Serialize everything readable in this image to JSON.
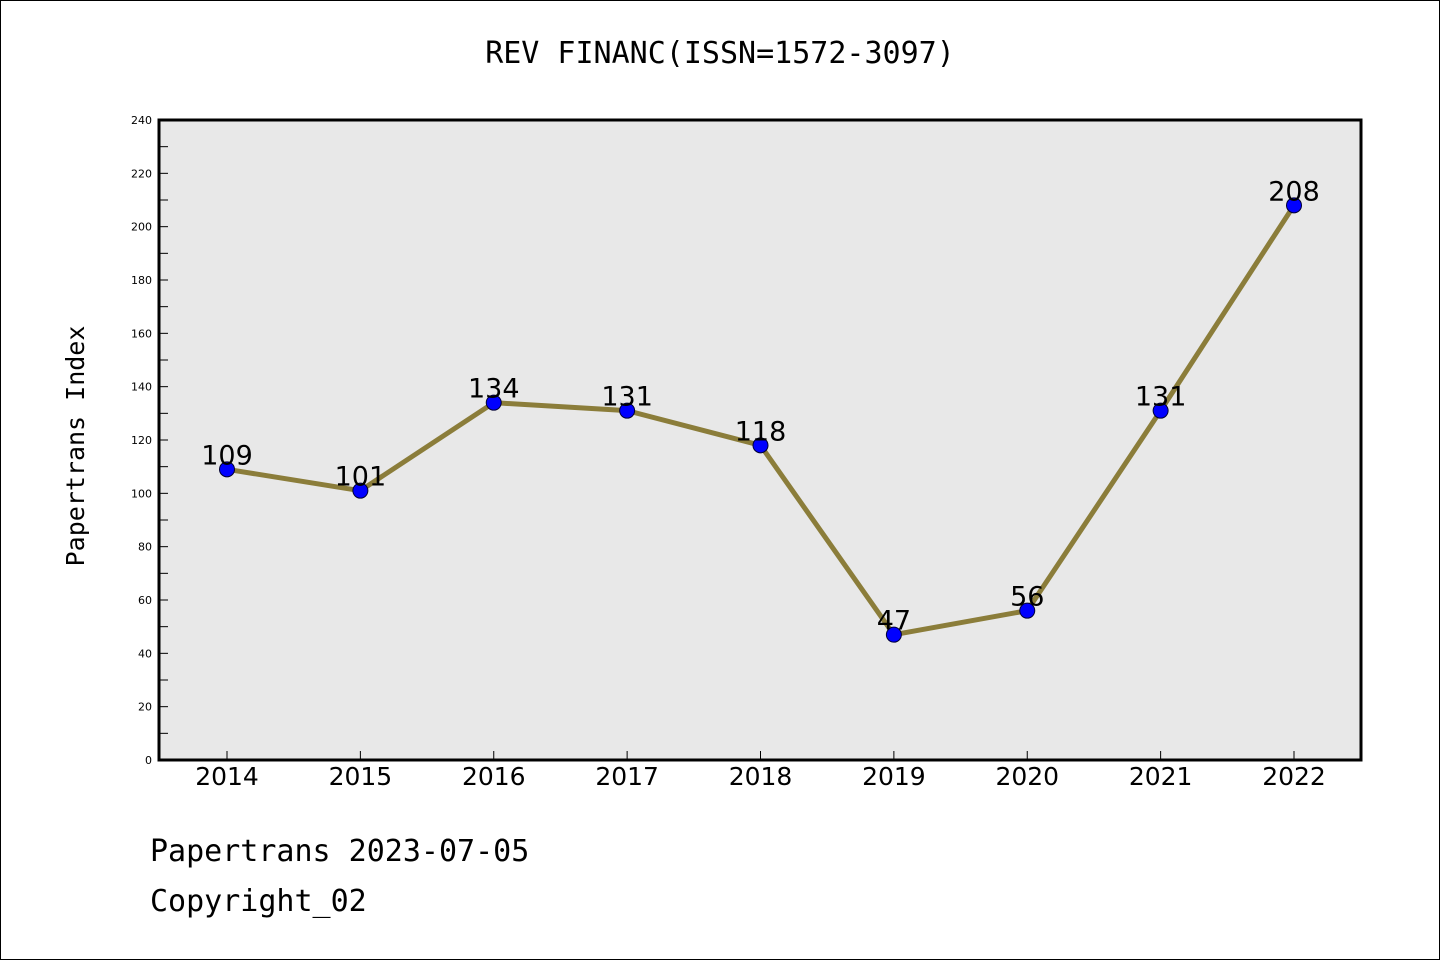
{
  "chart_data": {
    "type": "line",
    "title": "REV FINANC(ISSN=1572-3097)",
    "xlabel": "",
    "ylabel": "Papertrans Index",
    "categories": [
      "2014",
      "2015",
      "2016",
      "2017",
      "2018",
      "2019",
      "2020",
      "2021",
      "2022"
    ],
    "series": [
      {
        "values": [
          109,
          101,
          134,
          131,
          118,
          47,
          56,
          131,
          208
        ]
      }
    ],
    "data_labels": [
      "109",
      "101",
      "134",
      "131",
      "118",
      "47",
      "56",
      "131",
      "208"
    ],
    "y_ticks": [
      0,
      20,
      40,
      60,
      80,
      100,
      120,
      140,
      160,
      180,
      200,
      220,
      240
    ],
    "ylim": [
      0,
      240
    ],
    "grid": false,
    "legend": "none",
    "colors": {
      "line": "#8b7d3a",
      "marker": "#0000ff",
      "plot_background": "#e8e8e8",
      "axis": "#000000"
    }
  },
  "footer": {
    "date_text": "Papertrans 2023-07-05",
    "copyright_text": "Copyright_02"
  }
}
